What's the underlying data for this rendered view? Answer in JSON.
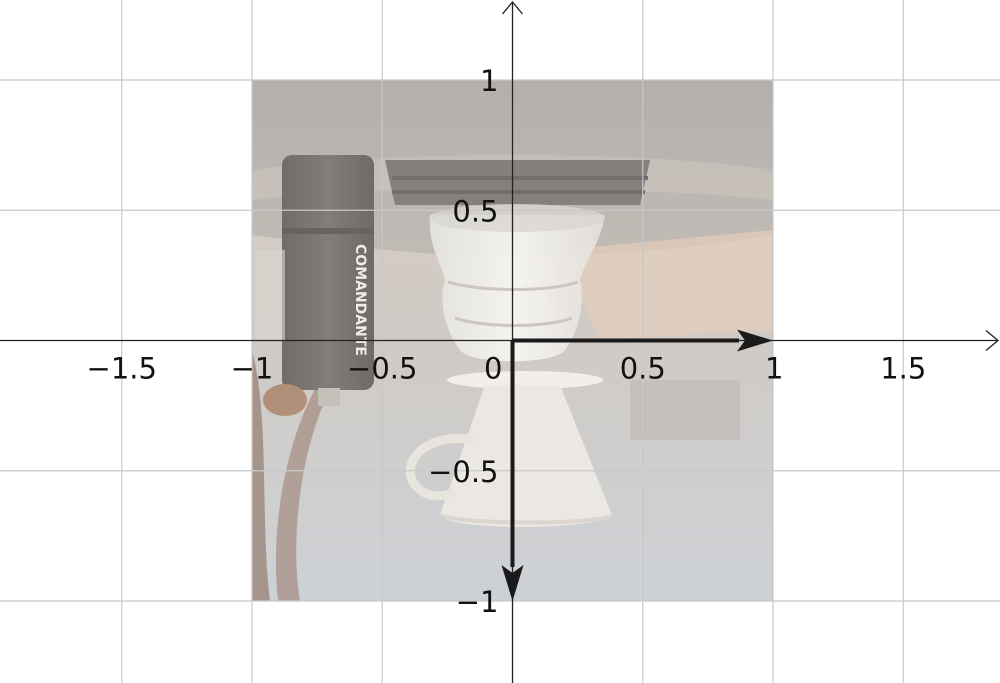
{
  "coordinate_plane": {
    "x_range": [
      -1.97,
      1.9
    ],
    "y_range": [
      -1.31,
      1.3
    ],
    "grid_step": 0.5,
    "x_ticks": [
      {
        "value": -1.5,
        "label": "−1.5"
      },
      {
        "value": -1,
        "label": "−1"
      },
      {
        "value": -0.5,
        "label": "−0.5"
      },
      {
        "value": 0,
        "label": "0"
      },
      {
        "value": 0.5,
        "label": "0.5"
      },
      {
        "value": 1,
        "label": "1"
      },
      {
        "value": 1.5,
        "label": "1.5"
      }
    ],
    "y_ticks": [
      {
        "value": 1,
        "label": "1"
      },
      {
        "value": 0.5,
        "label": "0.5"
      },
      {
        "value": -0.5,
        "label": "−0.5"
      },
      {
        "value": -1,
        "label": "−1"
      }
    ],
    "image": {
      "extent": {
        "x": [
          -1,
          1
        ],
        "y": [
          -1,
          1
        ]
      },
      "subject": "Photograph of a coffee dripper with glass server and a Comandante grinder, faded",
      "inverted": true,
      "visible_text": "COMANDANTE"
    },
    "vectors": [
      {
        "name": "x-basis-vector",
        "from": [
          0,
          0
        ],
        "to": [
          1,
          0
        ]
      },
      {
        "name": "y-basis-vector",
        "from": [
          0,
          0
        ],
        "to": [
          0,
          -1
        ]
      }
    ]
  },
  "colors": {
    "grid": "#c8c8c8",
    "axis": "#222222",
    "vector": "#1a1a1a",
    "image_wash": "#ffffff"
  }
}
